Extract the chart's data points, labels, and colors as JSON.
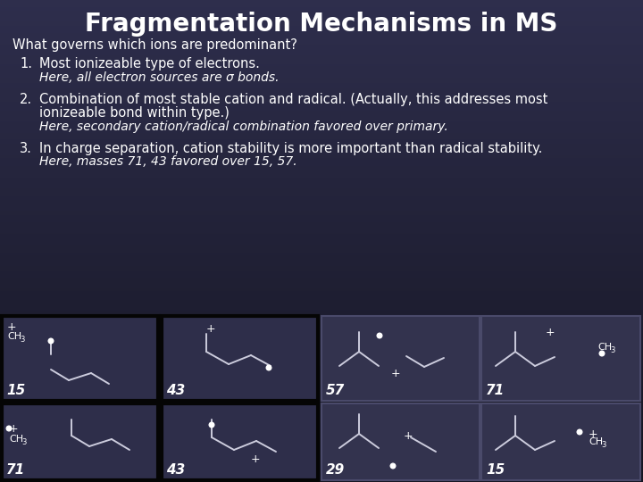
{
  "title": "Fragmentation Mechanisms in MS",
  "bg_color": "#1a1a2e",
  "bg_gradient_top": "#0d0d1a",
  "bg_gradient_bottom": "#2d2d4e",
  "box_bg": "#35355a",
  "box_bg_right": "#3a3a5a",
  "box_border_dark": "#000000",
  "box_border_light": "#4a4a6a",
  "text_color": "#ffffff",
  "mol_color": "#ccccdd",
  "subtitle": "What governs which ions are predominant?",
  "point1_main": "Most ionizeable type of electrons.",
  "point1_italic": "Here, all electron sources are σ bonds.",
  "point2_main1": "Combination of most stable cation and radical. (Actually, this addresses most",
  "point2_main2": "ionizeable bond within type.)",
  "point2_italic": "Here, secondary cation/radical combination favored over primary.",
  "point3_main": "In charge separation, cation stability is more important than radical stability.",
  "point3_italic": "Here, masses 71, 43 favored over 15, 57.",
  "labels_row0": [
    "15",
    "43",
    "57",
    "71"
  ],
  "labels_row1": [
    "71",
    "43",
    "29",
    "15"
  ]
}
